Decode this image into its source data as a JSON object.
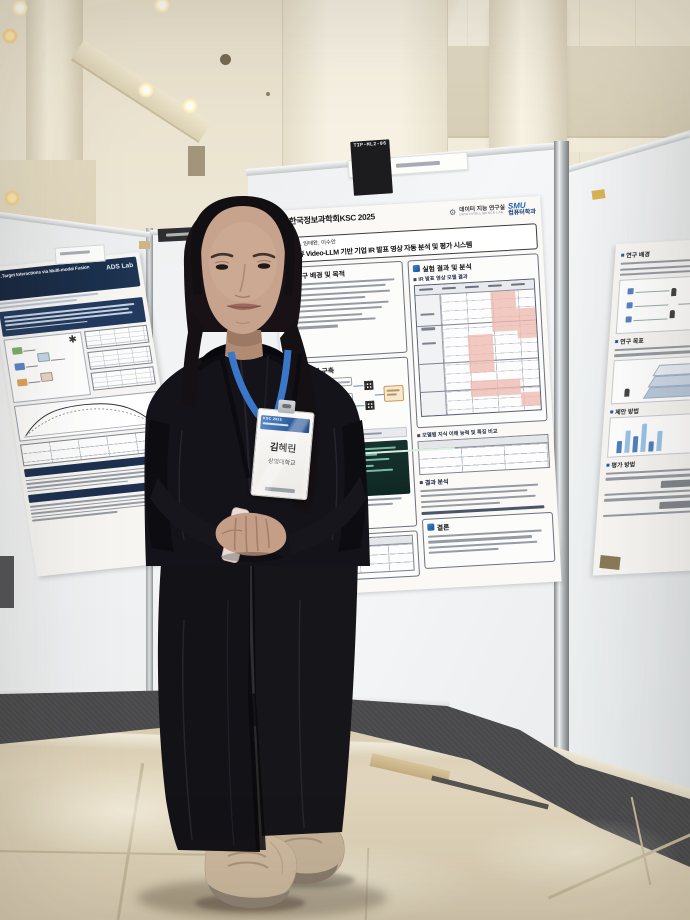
{
  "board_label": {
    "code": "TIP-ML2-06"
  },
  "poster_main": {
    "conference": "한국정보과학회KSC 2025",
    "lab": {
      "line1": "데이터 지능 연구실",
      "line2": "DATA INTELLIGENCE LAB"
    },
    "dept": {
      "abbr": "SMU",
      "name": "컴퓨터학과"
    },
    "authors": "김혜린, 임태완, 이수안",
    "title": "멀티뷰 Video-LLM 기반 기업 IR 발표 영상 자동 분석 및 평가 시스템",
    "sections": {
      "background": "연구 배경 및 목적",
      "system": "시스템 구축",
      "results": "실험 결과 및 분석",
      "results_sub": "IR 발표 영상 모델 결과",
      "model_table": "모델별 지식 이해 능력 및 특징 비교",
      "analysis": "결과 분석",
      "conclusion": "결론"
    }
  },
  "poster_left": {
    "title": "…Target Interactions via Multi-modal Fusion",
    "lab": "ADS Lab"
  },
  "poster_right": {
    "sections": [
      "연구 배경",
      "연구 목표",
      "제안 방법",
      "평가 방법"
    ]
  },
  "badge": {
    "header": "KSC 2025",
    "name": "김혜린",
    "affiliation": "상명대학교"
  },
  "colors": {
    "accent_blue": "#1f63b0",
    "navy": "#1d3050",
    "pink_highlight": "#eebaaf",
    "lanyard_blue": "#3a77c8",
    "carpet": "#48484a"
  }
}
